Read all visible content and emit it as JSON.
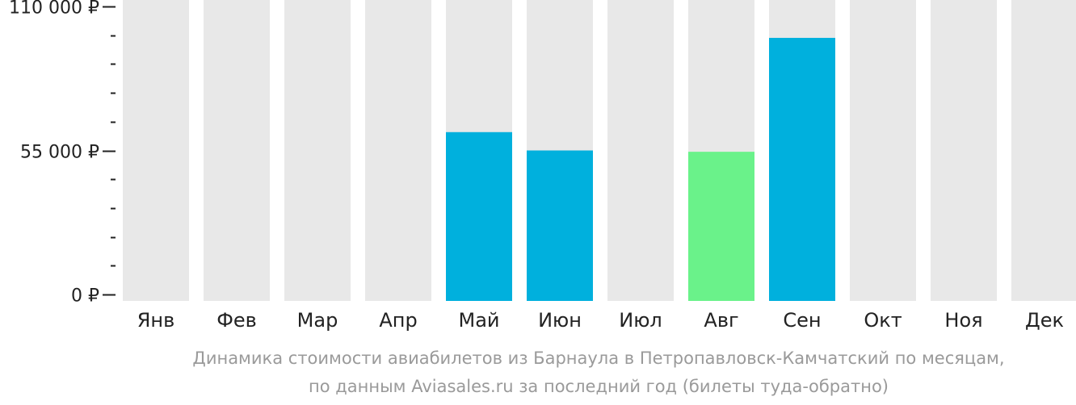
{
  "chart_data": {
    "type": "bar",
    "categories": [
      "Янв",
      "Фев",
      "Мар",
      "Апр",
      "Май",
      "Июн",
      "Июл",
      "Авг",
      "Сен",
      "Окт",
      "Ноя",
      "Дек"
    ],
    "values": [
      null,
      null,
      null,
      null,
      62000,
      55000,
      null,
      54500,
      98000,
      null,
      null,
      null
    ],
    "ylim": [
      0,
      110000
    ],
    "y_ticks": [
      {
        "value": 0,
        "label": "0 ₽"
      },
      {
        "value": 55000,
        "label": "55 000 ₽"
      },
      {
        "value": 110000,
        "label": "110 000 ₽"
      }
    ],
    "minor_tick_step": 11000,
    "highlight_index": 7,
    "colors": {
      "bar": "#00b0dd",
      "highlight": "#6af28a",
      "background_column": "#e8e8e8",
      "axis": "#222222"
    },
    "grid": false,
    "legend": "none"
  },
  "caption": {
    "line1": "Динамика стоимости авиабилетов из Барнаула в Петропавловск-Камчатский по месяцам,",
    "line2": "по данным Aviasales.ru за последний год (билеты туда-обратно)"
  }
}
